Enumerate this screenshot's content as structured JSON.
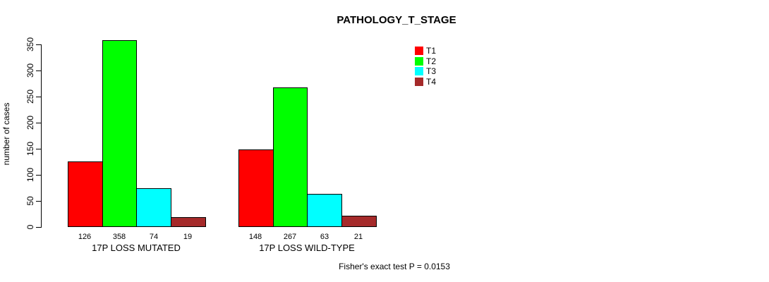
{
  "chart_data": {
    "type": "bar",
    "title": "PATHOLOGY_T_STAGE",
    "xlabel": "",
    "ylabel": "number of cases",
    "ylim": [
      0,
      358
    ],
    "yticks": [
      0,
      50,
      100,
      150,
      200,
      250,
      300,
      350
    ],
    "grid": false,
    "legend_position": "top-center",
    "series": [
      {
        "name": "T1",
        "color": "#FF0000"
      },
      {
        "name": "T2",
        "color": "#00FF00"
      },
      {
        "name": "T3",
        "color": "#00FFFF"
      },
      {
        "name": "T4",
        "color": "#A52A2A"
      }
    ],
    "groups": [
      {
        "label": "17P LOSS MUTATED",
        "values": [
          126,
          358,
          74,
          19
        ]
      },
      {
        "label": "17P LOSS WILD-TYPE",
        "values": [
          148,
          267,
          63,
          21
        ]
      }
    ],
    "bar_value_labels_shown": true,
    "annotation": "Fisher's exact test P = 0.0153"
  },
  "colors": {
    "background": "#FFFFFF",
    "axis": "#000000",
    "text": "#000000",
    "bar_border": "#000000"
  }
}
